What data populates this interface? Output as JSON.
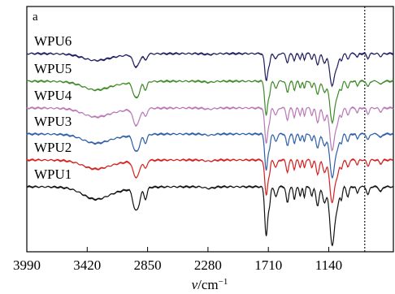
{
  "chart_data": {
    "type": "line",
    "panel_label": "a",
    "xlabel_main": "ν",
    "xlabel_unit": "/cm",
    "xlabel_exp": "−1",
    "x_ticks": [
      "3990",
      "3420",
      "2850",
      "2280",
      "1710",
      "1140"
    ],
    "x_tick_values": [
      3990,
      3420,
      2850,
      2280,
      1710,
      1140
    ],
    "xlim": [
      3990,
      530
    ],
    "reference_line_x": 800,
    "grid": false,
    "legend": "labels above each trace",
    "series": [
      {
        "name": "WPU6",
        "color": "#1c1c5e"
      },
      {
        "name": "WPU5",
        "color": "#3f8a2a"
      },
      {
        "name": "WPU4",
        "color": "#b878b8"
      },
      {
        "name": "WPU3",
        "color": "#2e5fa8"
      },
      {
        "name": "WPU2",
        "color": "#d42020"
      },
      {
        "name": "WPU1",
        "color": "#111111"
      }
    ]
  }
}
